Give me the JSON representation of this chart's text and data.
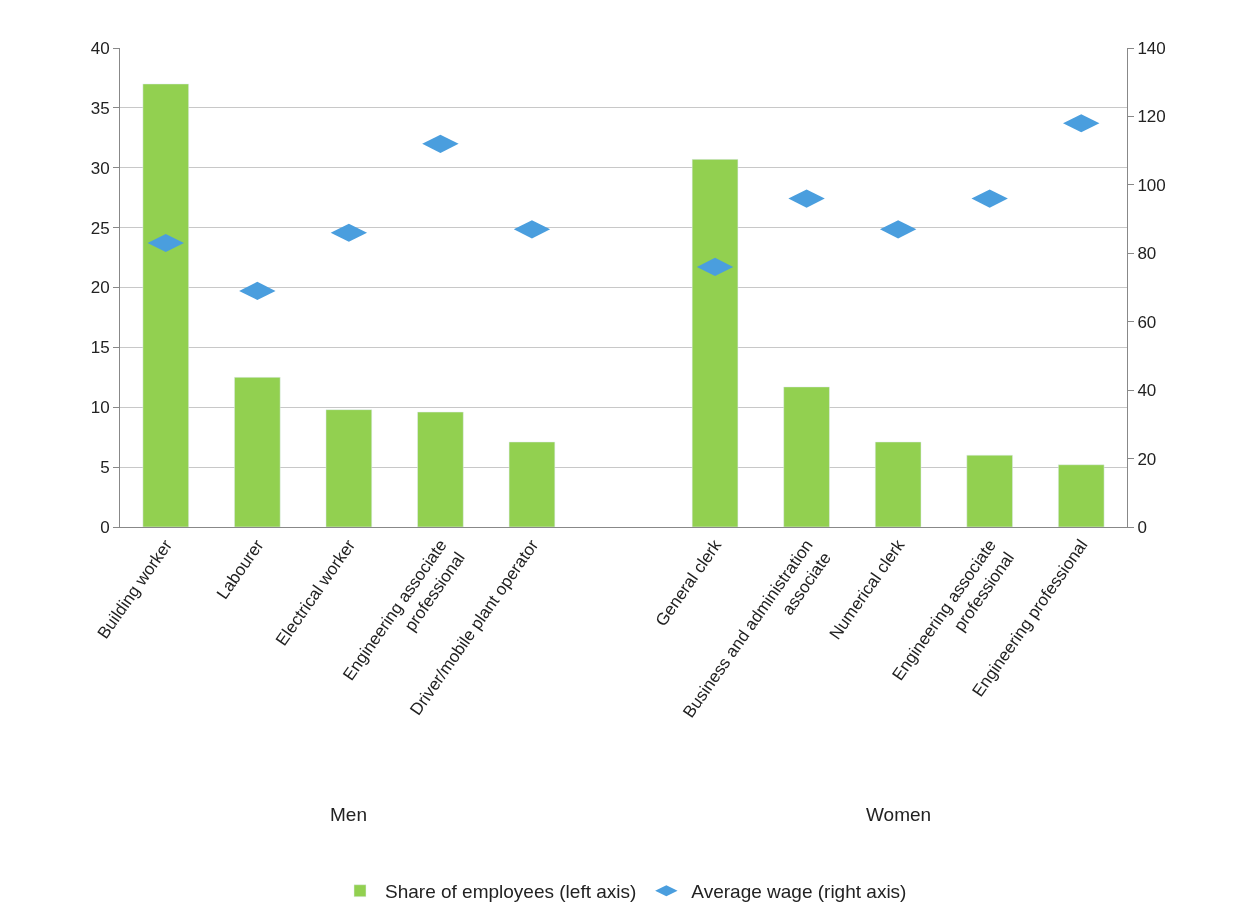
{
  "chart_data": {
    "type": "bar",
    "categories": [
      "Building worker",
      "Labourer",
      "Electrical worker",
      "Engineering associate\nprofessional",
      "Driver/mobile plant operator",
      null,
      "General clerk",
      "Business and administration\nassociate",
      "Numerical clerk",
      "Engineering associate\nprofessional",
      "Engineering professional"
    ],
    "series": [
      {
        "name": "Share of employees (left axis)",
        "color": "#92d050",
        "values": [
          37.0,
          12.5,
          9.8,
          9.6,
          7.1,
          null,
          30.7,
          11.7,
          7.1,
          6.0,
          5.2
        ]
      },
      {
        "name": "Average wage (right axis)",
        "type": "scatter",
        "axis": "y2",
        "color": "#4a9ede",
        "values": [
          83,
          69,
          86,
          112,
          87,
          null,
          76,
          96,
          87,
          96,
          118
        ]
      }
    ],
    "ylim": [
      0,
      40
    ],
    "yticks": [
      0,
      5,
      10,
      15,
      20,
      25,
      30,
      35,
      40
    ],
    "y2lim": [
      0,
      140
    ],
    "y2ticks": [
      0,
      20,
      40,
      60,
      80,
      100,
      120,
      140
    ],
    "annotations": [
      "Men",
      "Women"
    ],
    "grid": "y",
    "legend": "bottom"
  }
}
